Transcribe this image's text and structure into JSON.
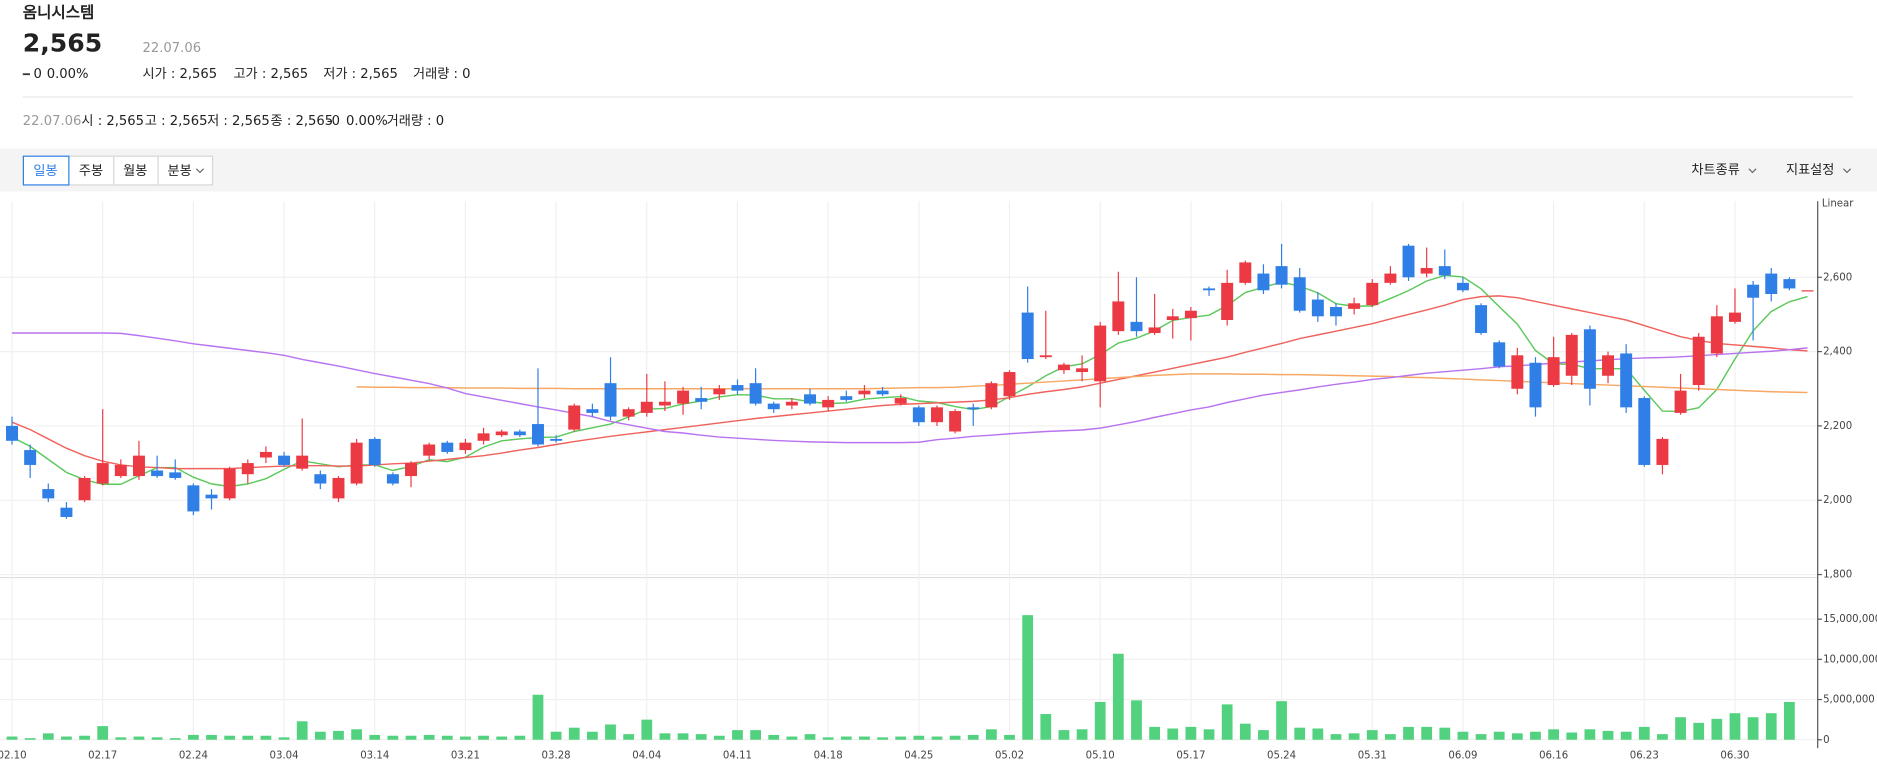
{
  "header": {
    "name": "옴니시스템",
    "price": "2,565",
    "date": "22.07.06",
    "change": "0",
    "change_rate": "0.00%",
    "open": "시가 : 2,565",
    "high": "고가 : 2,565",
    "low": "저가 : 2,565",
    "volume": "거래량 : 0"
  },
  "info_bar": {
    "date": "22.07.06",
    "open": "시 : 2,565",
    "high": "고 : 2,565",
    "low": "저 : 2,565",
    "close": "종 : 2,565",
    "change": "-0",
    "change_rate": "0.00%",
    "volume": "거래량 : 0"
  },
  "toolbar": {
    "periods": [
      "일봉",
      "주봉",
      "월봉",
      "분봉"
    ],
    "chart_type": "차트종류",
    "indicator": "지표설정"
  },
  "chart_data": {
    "type": "candlestick",
    "scale_label": "Linear",
    "grid": true,
    "up_color": "#ec3a44",
    "down_color": "#2f7fe6",
    "volume_color": "#52d27f",
    "categories": [
      "02.10",
      null,
      null,
      null,
      null,
      "02.17",
      null,
      null,
      null,
      null,
      "02.24",
      null,
      null,
      null,
      null,
      "03.04",
      null,
      null,
      null,
      null,
      "03.14",
      null,
      null,
      null,
      null,
      "03.21",
      null,
      null,
      null,
      null,
      "03.28",
      null,
      null,
      null,
      null,
      "04.04",
      null,
      null,
      null,
      null,
      "04.11",
      null,
      null,
      null,
      null,
      "04.18",
      null,
      null,
      null,
      null,
      "04.25",
      null,
      null,
      null,
      null,
      "05.02",
      null,
      null,
      null,
      null,
      "05.10",
      null,
      null,
      null,
      null,
      "05.17",
      null,
      null,
      null,
      null,
      "05.24",
      null,
      null,
      null,
      null,
      "05.31",
      null,
      null,
      null,
      null,
      "06.09",
      null,
      null,
      null,
      null,
      "06.16",
      null,
      null,
      null,
      null,
      "06.23",
      null,
      null,
      null,
      null,
      "06.30",
      null,
      null,
      null,
      null
    ],
    "open": [
      2200,
      2135,
      2030,
      1980,
      2000,
      2045,
      2065,
      2065,
      2080,
      2075,
      2040,
      2015,
      2005,
      2070,
      2115,
      2120,
      2085,
      2070,
      2005,
      2045,
      2165,
      2070,
      2065,
      2120,
      2155,
      2135,
      2160,
      2175,
      2185,
      2205,
      2165,
      2190,
      2245,
      2315,
      2225,
      2235,
      2255,
      2260,
      2275,
      2285,
      2310,
      2315,
      2260,
      2255,
      2285,
      2250,
      2280,
      2285,
      2295,
      2260,
      2250,
      2210,
      2185,
      2250,
      2250,
      2280,
      2505,
      2385,
      2350,
      2345,
      2320,
      2455,
      2480,
      2450,
      2485,
      2490,
      2570,
      2485,
      2585,
      2610,
      2630,
      2600,
      2540,
      2520,
      2515,
      2525,
      2585,
      2685,
      2610,
      2630,
      2585,
      2525,
      2425,
      2300,
      2370,
      2310,
      2335,
      2460,
      2335,
      2395,
      2275,
      2095,
      2235,
      2310,
      2395,
      2480,
      2580,
      2610,
      2595,
      2565
    ],
    "high": [
      2225,
      2150,
      2045,
      1995,
      2065,
      2245,
      2110,
      2160,
      2120,
      2110,
      2045,
      2030,
      2090,
      2110,
      2145,
      2130,
      2220,
      2080,
      2065,
      2165,
      2170,
      2075,
      2105,
      2155,
      2160,
      2165,
      2195,
      2190,
      2190,
      2355,
      2175,
      2260,
      2260,
      2385,
      2250,
      2340,
      2320,
      2305,
      2305,
      2310,
      2325,
      2355,
      2265,
      2275,
      2300,
      2280,
      2295,
      2310,
      2305,
      2285,
      2255,
      2255,
      2245,
      2260,
      2320,
      2350,
      2575,
      2510,
      2370,
      2390,
      2480,
      2615,
      2600,
      2555,
      2515,
      2520,
      2575,
      2620,
      2645,
      2635,
      2690,
      2625,
      2560,
      2530,
      2545,
      2595,
      2630,
      2690,
      2680,
      2675,
      2600,
      2530,
      2430,
      2410,
      2385,
      2440,
      2450,
      2470,
      2400,
      2420,
      2280,
      2170,
      2340,
      2450,
      2525,
      2570,
      2590,
      2625,
      2600,
      2565
    ],
    "low": [
      2150,
      2060,
      1995,
      1950,
      1995,
      2040,
      2060,
      2055,
      2060,
      2055,
      1960,
      1975,
      2000,
      2045,
      2100,
      2090,
      2080,
      2030,
      1995,
      2040,
      2090,
      2040,
      2035,
      2110,
      2125,
      2125,
      2150,
      2170,
      2170,
      2145,
      2155,
      2185,
      2225,
      2215,
      2215,
      2225,
      2240,
      2230,
      2245,
      2270,
      2285,
      2255,
      2235,
      2245,
      2255,
      2240,
      2265,
      2275,
      2280,
      2255,
      2200,
      2200,
      2180,
      2200,
      2245,
      2270,
      2370,
      2380,
      2340,
      2320,
      2250,
      2445,
      2440,
      2445,
      2435,
      2430,
      2550,
      2470,
      2580,
      2555,
      2570,
      2505,
      2480,
      2470,
      2500,
      2520,
      2580,
      2590,
      2600,
      2595,
      2560,
      2445,
      2355,
      2285,
      2225,
      2305,
      2310,
      2255,
      2315,
      2235,
      2090,
      2070,
      2230,
      2295,
      2385,
      2475,
      2430,
      2535,
      2565,
      2565
    ],
    "close": [
      2160,
      2095,
      2005,
      1955,
      2060,
      2100,
      2095,
      2120,
      2065,
      2060,
      1970,
      2005,
      2085,
      2100,
      2130,
      2095,
      2120,
      2045,
      2060,
      2155,
      2095,
      2045,
      2100,
      2150,
      2130,
      2155,
      2180,
      2185,
      2175,
      2150,
      2160,
      2255,
      2235,
      2225,
      2245,
      2265,
      2265,
      2295,
      2265,
      2300,
      2295,
      2260,
      2245,
      2265,
      2260,
      2270,
      2270,
      2295,
      2285,
      2275,
      2210,
      2250,
      2240,
      2245,
      2315,
      2345,
      2380,
      2390,
      2365,
      2355,
      2470,
      2535,
      2455,
      2465,
      2495,
      2510,
      2565,
      2585,
      2640,
      2565,
      2580,
      2510,
      2495,
      2495,
      2530,
      2585,
      2610,
      2600,
      2625,
      2605,
      2565,
      2450,
      2360,
      2390,
      2250,
      2385,
      2445,
      2300,
      2390,
      2250,
      2095,
      2165,
      2295,
      2440,
      2495,
      2505,
      2545,
      2555,
      2570,
      2565
    ],
    "volume": [
      400000,
      200000,
      800000,
      400000,
      500000,
      1700000,
      300000,
      400000,
      300000,
      200000,
      600000,
      600000,
      500000,
      500000,
      500000,
      300000,
      2300000,
      1000000,
      1100000,
      1300000,
      600000,
      500000,
      500000,
      600000,
      500000,
      400000,
      500000,
      400000,
      500000,
      5600000,
      1000000,
      1500000,
      1000000,
      1900000,
      700000,
      2500000,
      800000,
      800000,
      700000,
      500000,
      1200000,
      1200000,
      600000,
      400000,
      700000,
      300000,
      400000,
      400000,
      300000,
      400000,
      500000,
      400000,
      500000,
      600000,
      1300000,
      600000,
      15500000,
      3200000,
      1200000,
      1300000,
      4700000,
      10700000,
      4900000,
      1600000,
      1400000,
      1600000,
      1300000,
      4400000,
      2000000,
      1200000,
      4800000,
      1500000,
      1400000,
      700000,
      800000,
      1200000,
      700000,
      1600000,
      1600000,
      1500000,
      1000000,
      700000,
      1000000,
      800000,
      1000000,
      1300000,
      900000,
      1300000,
      1100000,
      1000000,
      1600000,
      700000,
      2800000,
      2100000,
      2600000,
      3300000,
      2800000,
      3300000,
      4700000,
      0
    ],
    "lines": [
      {
        "color": "#5bc95b",
        "values": [
          2170,
          2145,
          2110,
          2075,
          2055,
          2043,
          2043,
          2066,
          2088,
          2088,
          2062,
          2044,
          2037,
          2044,
          2058,
          2083,
          2106,
          2098,
          2090,
          2095,
          2095,
          2080,
          2091,
          2109,
          2104,
          2116,
          2143,
          2160,
          2165,
          2169,
          2170,
          2185,
          2195,
          2205,
          2224,
          2245,
          2247,
          2259,
          2267,
          2278,
          2284,
          2283,
          2273,
          2273,
          2265,
          2260,
          2262,
          2272,
          2276,
          2279,
          2267,
          2263,
          2252,
          2244,
          2252,
          2279,
          2305,
          2335,
          2359,
          2367,
          2392,
          2423,
          2436,
          2456,
          2484,
          2492,
          2498,
          2524,
          2559,
          2573,
          2587,
          2576,
          2558,
          2529,
          2522,
          2523,
          2543,
          2564,
          2590,
          2605,
          2601,
          2569,
          2521,
          2474,
          2403,
          2367,
          2366,
          2354,
          2354,
          2354,
          2296,
          2240,
          2239,
          2249,
          2298,
          2380,
          2456,
          2508,
          2534,
          2548
        ]
      },
      {
        "color": "#f0625c",
        "values": [
          2210,
          2190,
          2165,
          2140,
          2120,
          2105,
          2095,
          2090,
          2088,
          2085,
          2085,
          2085,
          2085,
          2088,
          2090,
          2092,
          2093,
          2093,
          2092,
          2092,
          2095,
          2098,
          2100,
          2105,
          2110,
          2115,
          2120,
          2127,
          2135,
          2142,
          2150,
          2158,
          2165,
          2172,
          2178,
          2184,
          2190,
          2196,
          2202,
          2208,
          2214,
          2220,
          2225,
          2230,
          2235,
          2240,
          2245,
          2250,
          2255,
          2258,
          2260,
          2262,
          2264,
          2266,
          2270,
          2276,
          2285,
          2292,
          2298,
          2305,
          2315,
          2325,
          2335,
          2345,
          2355,
          2365,
          2375,
          2385,
          2398,
          2410,
          2422,
          2435,
          2445,
          2455,
          2465,
          2475,
          2488,
          2500,
          2512,
          2525,
          2540,
          2548,
          2550,
          2545,
          2535,
          2525,
          2515,
          2505,
          2495,
          2485,
          2470,
          2455,
          2440,
          2430,
          2422,
          2418,
          2414,
          2410,
          2405,
          2402
        ]
      },
      {
        "color": "#f6a864",
        "values": [
          null,
          null,
          null,
          null,
          null,
          null,
          null,
          null,
          null,
          null,
          null,
          null,
          null,
          null,
          null,
          null,
          null,
          null,
          null,
          2305,
          2304,
          2304,
          2303,
          2303,
          2303,
          2302,
          2302,
          2302,
          2301,
          2301,
          2301,
          2300,
          2300,
          2300,
          2300,
          2300,
          2300,
          2300,
          2300,
          2300,
          2300,
          2300,
          2300,
          2300,
          2300,
          2300,
          2300,
          2300,
          2301,
          2302,
          2303,
          2303,
          2304,
          2307,
          2309,
          2312,
          2315,
          2318,
          2321,
          2324,
          2327,
          2330,
          2333,
          2336,
          2338,
          2340,
          2340,
          2340,
          2339,
          2339,
          2338,
          2338,
          2337,
          2336,
          2335,
          2334,
          2333,
          2331,
          2330,
          2328,
          2326,
          2324,
          2322,
          2320,
          2318,
          2316,
          2314,
          2312,
          2310,
          2308,
          2306,
          2304,
          2302,
          2300,
          2298,
          2296,
          2294,
          2292,
          2291,
          2290
        ]
      },
      {
        "color": "#b874f0",
        "values": [
          2450,
          2450,
          2450,
          2450,
          2450,
          2450,
          2449,
          2443,
          2436,
          2429,
          2421,
          2415,
          2409,
          2403,
          2397,
          2390,
          2379,
          2370,
          2361,
          2351,
          2341,
          2332,
          2323,
          2314,
          2302,
          2287,
          2278,
          2269,
          2260,
          2251,
          2243,
          2234,
          2225,
          2212,
          2203,
          2194,
          2185,
          2181,
          2175,
          2170,
          2167,
          2164,
          2161,
          2159,
          2157,
          2156,
          2155,
          2155,
          2155,
          2155,
          2156,
          2163,
          2167,
          2172,
          2175,
          2179,
          2182,
          2185,
          2187,
          2189,
          2194,
          2203,
          2212,
          2223,
          2233,
          2243,
          2251,
          2263,
          2273,
          2283,
          2290,
          2297,
          2305,
          2312,
          2318,
          2325,
          2330,
          2336,
          2342,
          2346,
          2350,
          2354,
          2359,
          2362,
          2365,
          2369,
          2372,
          2375,
          2378,
          2381,
          2383,
          2384,
          2386,
          2389,
          2392,
          2395,
          2398,
          2401,
          2405,
          2410
        ]
      }
    ],
    "ylim": [
      1800,
      2805
    ],
    "yticks": [
      {
        "value": 1800,
        "label": "1,800"
      },
      {
        "value": 2000,
        "label": "2,000"
      },
      {
        "value": 2200,
        "label": "2,200"
      },
      {
        "value": 2400,
        "label": "2,400"
      },
      {
        "value": 2600,
        "label": "2,600"
      }
    ],
    "volume_ylim": [
      0,
      19800000
    ],
    "volume_yticks": [
      0,
      {
        "value": 5000000,
        "label": "5,000,000"
      },
      {
        "value": 10000000,
        "label": "10,000,000"
      },
      {
        "value": 15000000,
        "label": "15,000,000"
      }
    ]
  }
}
